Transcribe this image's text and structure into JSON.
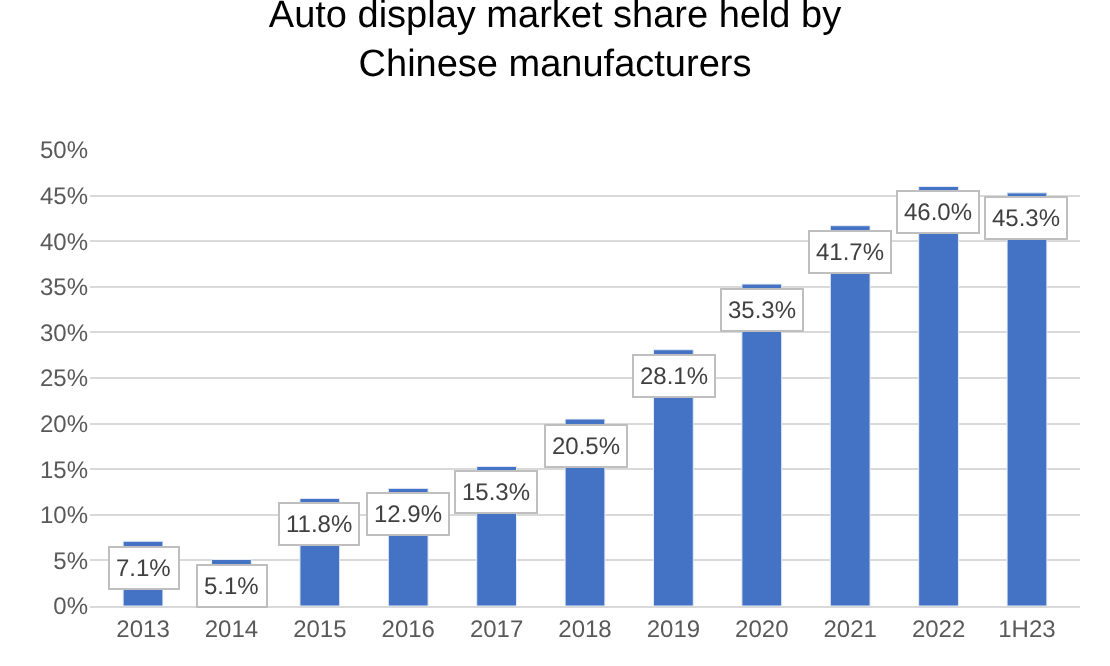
{
  "chart_data": {
    "type": "bar",
    "title": "Auto display market share held by\nChinese manufacturers",
    "categories": [
      "2013",
      "2014",
      "2015",
      "2016",
      "2017",
      "2018",
      "2019",
      "2020",
      "2021",
      "2022",
      "1H23"
    ],
    "values": [
      7.1,
      5.1,
      11.8,
      12.9,
      15.3,
      20.5,
      28.1,
      35.3,
      41.7,
      46.0,
      45.3
    ],
    "value_labels": [
      "7.1%",
      "5.1%",
      "11.8%",
      "12.9%",
      "15.3%",
      "20.5%",
      "28.1%",
      "35.3%",
      "41.7%",
      "46.0%",
      "45.3%"
    ],
    "color": "#4472c4",
    "ylim": [
      0,
      50
    ],
    "yticks": [
      {
        "value": 0,
        "label": "0%"
      },
      {
        "value": 5,
        "label": "5%"
      },
      {
        "value": 10,
        "label": "10%"
      },
      {
        "value": 15,
        "label": "15%"
      },
      {
        "value": 20,
        "label": "20%"
      },
      {
        "value": 25,
        "label": "25%"
      },
      {
        "value": 30,
        "label": "30%"
      },
      {
        "value": 35,
        "label": "35%"
      },
      {
        "value": 40,
        "label": "40%"
      },
      {
        "value": 45,
        "label": "45%"
      },
      {
        "value": 50,
        "label": "50%"
      }
    ],
    "grid": "y",
    "legend": false
  }
}
